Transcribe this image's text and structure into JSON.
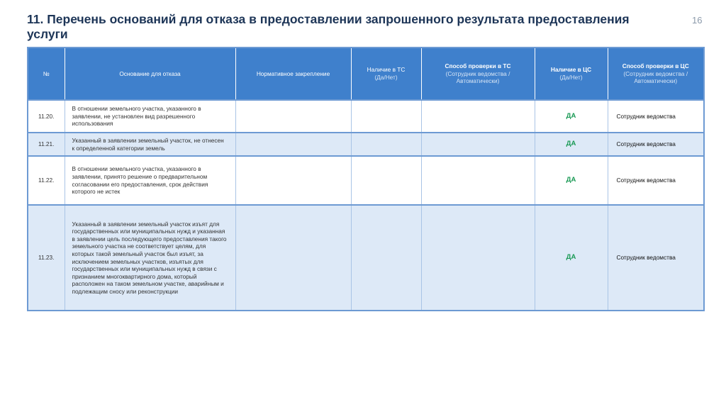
{
  "title": "11. Перечень оснований для отказа в предоставлении запрошенного результата предоставления услуги",
  "page_number": "16",
  "colors": {
    "header": "#3f80cc",
    "row_alt": "#dde9f7",
    "yes": "#1a9a55"
  },
  "table": {
    "headers": [
      {
        "main": "№",
        "sub": ""
      },
      {
        "main": "Основание для отказа",
        "sub": ""
      },
      {
        "main": "Нормативное закрепление",
        "sub": ""
      },
      {
        "main": "Наличие в ТС",
        "sub": "(Да/Нет)"
      },
      {
        "main": "Способ проверки в ТС",
        "sub": "(Сотрудник ведомства / Автоматически)"
      },
      {
        "main": "Наличие в ЦС",
        "sub": "(Да/Нет)"
      },
      {
        "main": "Способ проверки в ЦС",
        "sub": "(Сотрудник ведомства / Автоматически)"
      }
    ],
    "rows": [
      {
        "num": "11.20.",
        "reason": "В отношении земельного участка, указанного в заявлении, не установлен вид разрешенного использования",
        "norm": "",
        "ts": "",
        "ts_method": "",
        "cs": "ДА",
        "cs_method": "Сотрудник ведомства"
      },
      {
        "num": "11.21.",
        "reason": "Указанный в заявлении земельный участок, не отнесен к определенной категории земель",
        "norm": "",
        "ts": "",
        "ts_method": "",
        "cs": "ДА",
        "cs_method": "Сотрудник ведомства"
      },
      {
        "num": "11.22.",
        "reason": "В отношении земельного участка, указанного в заявлении, принято решение о предварительном согласовании его предоставления, срок действия которого не истек",
        "norm": "",
        "ts": "",
        "ts_method": "",
        "cs": "ДА",
        "cs_method": "Сотрудник ведомства"
      },
      {
        "num": "11.23.",
        "reason": "Указанный в заявлении земельный участок изъят для государственных или муниципальных нужд и указанная в заявлении цель последующего предоставления такого земельного участка не соответствует целям, для которых такой земельный участок был изъят, за исключением земельных участков, изъятых для государственных или муниципальных нужд в связи с признанием многоквартирного дома, который расположен на таком земельном участке, аварийным и подлежащим сносу или реконструкции",
        "norm": "",
        "ts": "",
        "ts_method": "",
        "cs": "ДА",
        "cs_method": "Сотрудник ведомства"
      }
    ]
  }
}
